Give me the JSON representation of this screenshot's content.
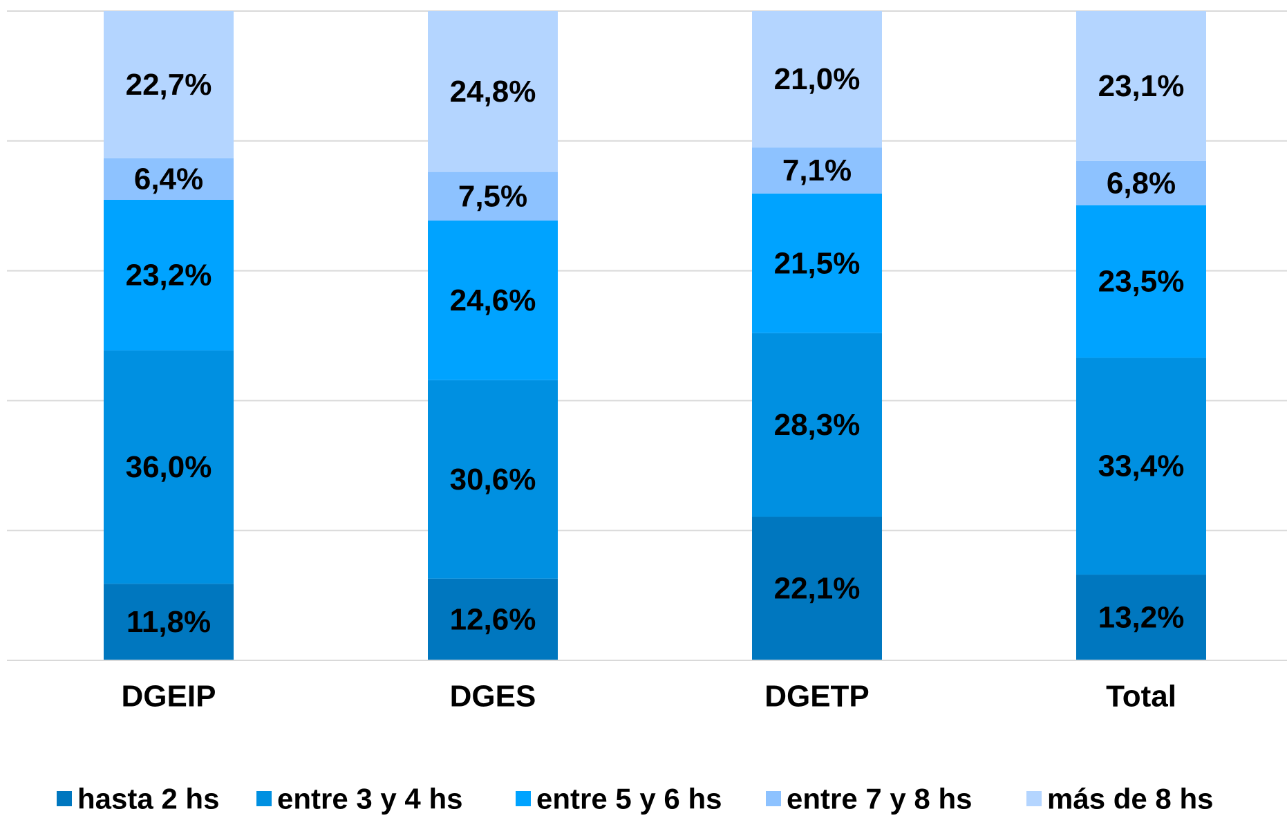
{
  "chart_data": {
    "type": "bar",
    "stacked": true,
    "normalized": true,
    "title": "",
    "xlabel": "",
    "ylabel": "",
    "ylim": [
      0,
      1
    ],
    "grid": true,
    "legend_position": "bottom",
    "categories": [
      "DGEIP",
      "DGES",
      "DGETP",
      "Total"
    ],
    "series": [
      {
        "name": "hasta 2 hs",
        "color": "#0077BF",
        "values": [
          11.8,
          12.6,
          22.1,
          13.2
        ],
        "labels": [
          "11,8%",
          "12,6%",
          "22,1%",
          "13,2%"
        ]
      },
      {
        "name": "entre 3 y 4 hs",
        "color": "#0090E1",
        "values": [
          36.0,
          30.6,
          28.3,
          33.4
        ],
        "labels": [
          "36,0%",
          "30,6%",
          "28,3%",
          "33,4%"
        ]
      },
      {
        "name": "entre 5 y 6 hs",
        "color": "#00A3FF",
        "values": [
          23.2,
          24.6,
          21.5,
          23.5
        ],
        "labels": [
          "23,2%",
          "24,6%",
          "21,5%",
          "23,5%"
        ]
      },
      {
        "name": "entre 7 y 8 hs",
        "color": "#8DC2FF",
        "values": [
          6.4,
          7.5,
          7.1,
          6.8
        ],
        "labels": [
          "6,4%",
          "7,5%",
          "7,1%",
          "6,8%"
        ]
      },
      {
        "name": "más de 8 hs",
        "color": "#B4D5FF",
        "values": [
          22.7,
          24.8,
          21.0,
          23.1
        ],
        "labels": [
          "22,7%",
          "24,8%",
          "21,0%",
          "23,1%"
        ]
      }
    ]
  }
}
